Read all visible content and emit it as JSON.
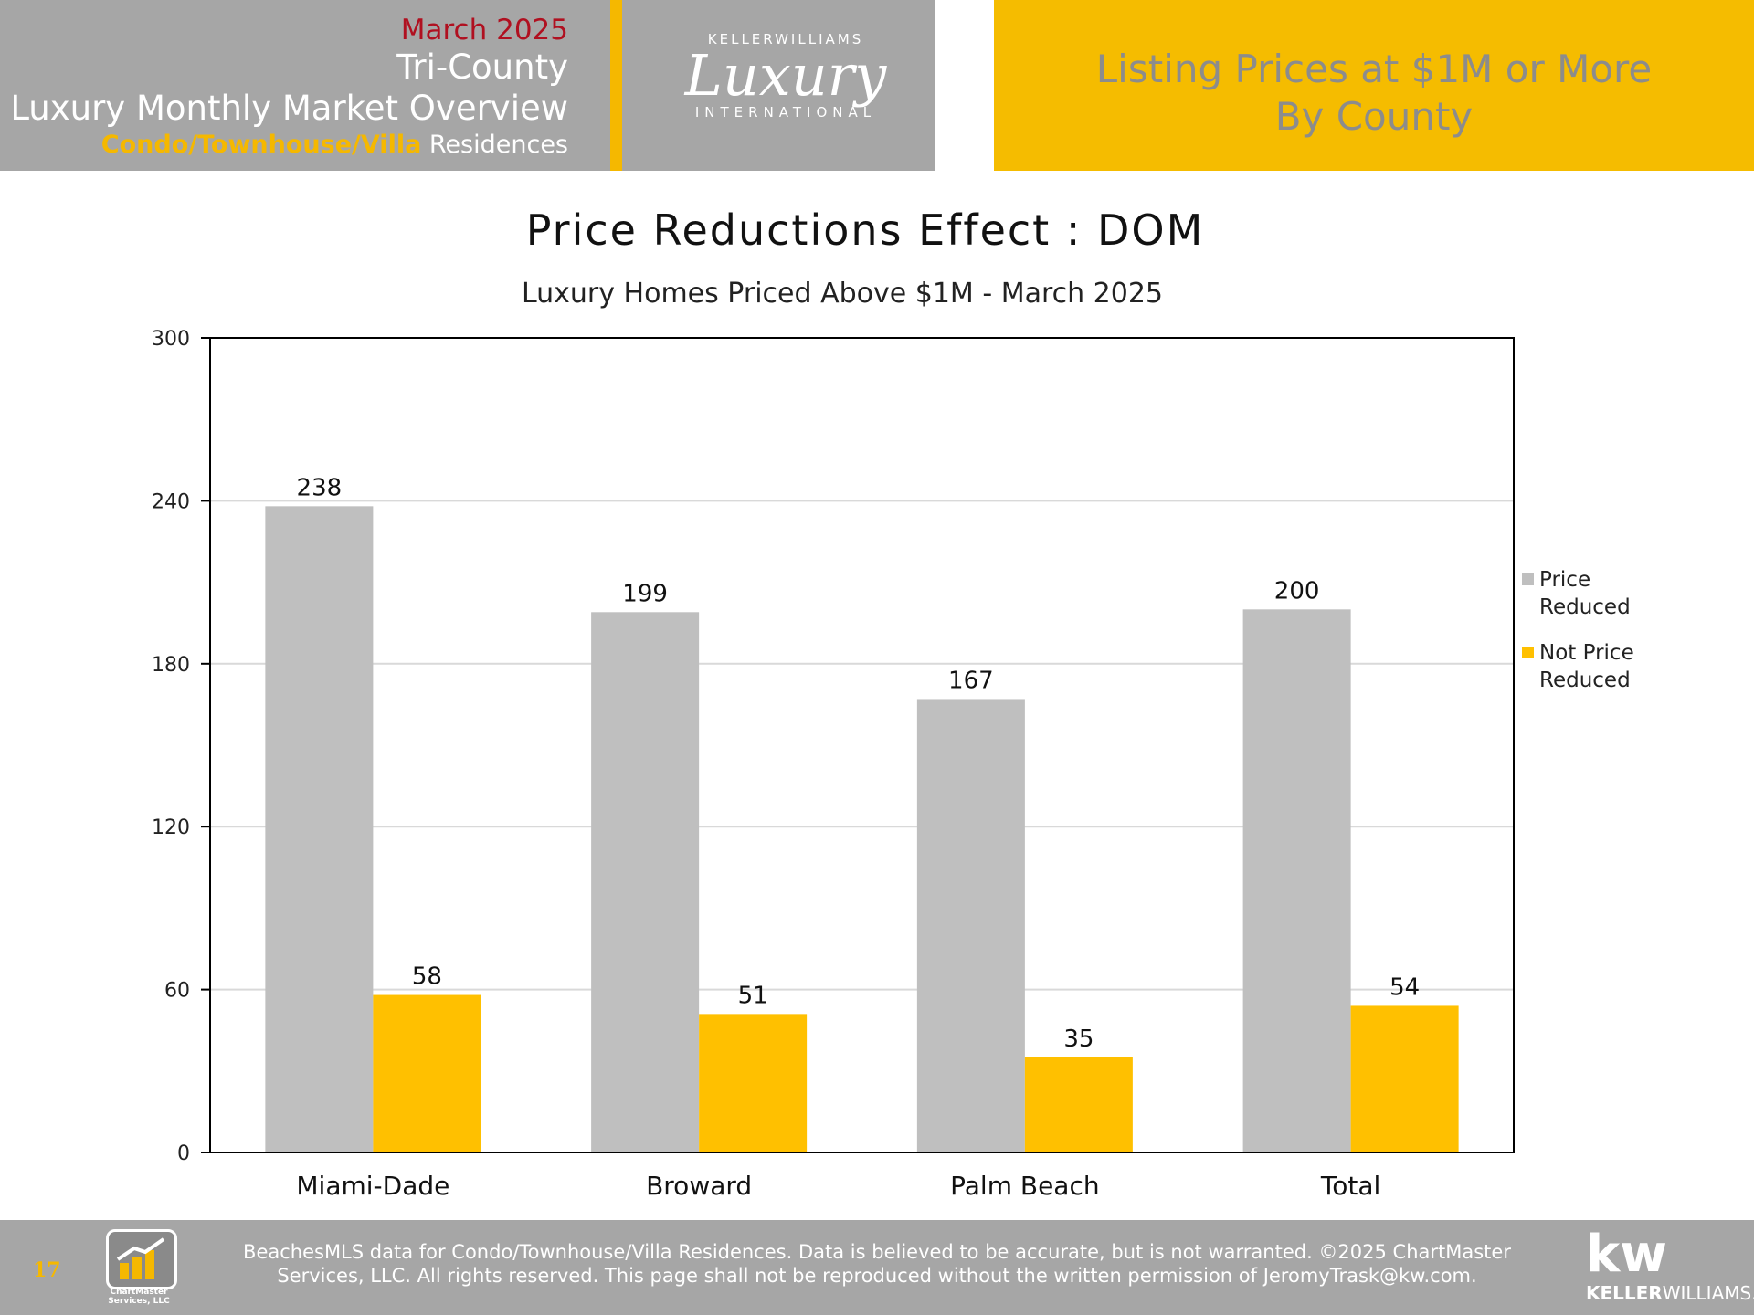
{
  "header": {
    "date": "March 2025",
    "region": "Tri-County",
    "report": "Luxury Monthly Market Overview",
    "property_type_highlight": "Condo/Townhouse/Villa",
    "property_type_rest": " Residences",
    "logo": {
      "brand_top": "KELLERWILLIAMS",
      "brand_script": "Luxury",
      "brand_bottom": "INTERNATIONAL"
    },
    "title_line1": "Listing Prices at $1M or More",
    "title_line2": "By County"
  },
  "chart_data": {
    "type": "bar",
    "title": "Price Reductions Effect : DOM",
    "subtitle": "Luxury Homes Priced Above $1M - March 2025",
    "categories": [
      "Miami-Dade",
      "Broward",
      "Palm Beach",
      "Total"
    ],
    "series": [
      {
        "name": "Price Reduced",
        "legend_lines": [
          "Price",
          "Reduced"
        ],
        "values": [
          238,
          199,
          167,
          200
        ],
        "color": "#bfbfbf"
      },
      {
        "name": "Not Price Reduced",
        "legend_lines": [
          "Not Price",
          "Reduced"
        ],
        "values": [
          58,
          51,
          35,
          54
        ],
        "color": "#ffc000"
      }
    ],
    "ylim": [
      0,
      300
    ],
    "yticks": [
      0,
      60,
      120,
      180,
      240,
      300
    ],
    "grid": true,
    "legend": "right"
  },
  "footer": {
    "page_number": "17",
    "logo_text": "ChartMaster Services, LLC",
    "disclaimer_line1": "BeachesMLS data for Condo/Townhouse/Villa Residences.  Data is believed to be accurate, but is not warranted.   ©2025  ChartMaster",
    "disclaimer_line2": "Services, LLC.  All rights reserved. This page shall not be reproduced without the written permission of JeromyTrask@kw.com.",
    "kw_mark": "kw",
    "kw_bold": "KELLER",
    "kw_rest": "WILLIAMS."
  },
  "colors": {
    "gold": "#f5bc00",
    "gray": "#a6a6a6",
    "date_red": "#b01020"
  }
}
